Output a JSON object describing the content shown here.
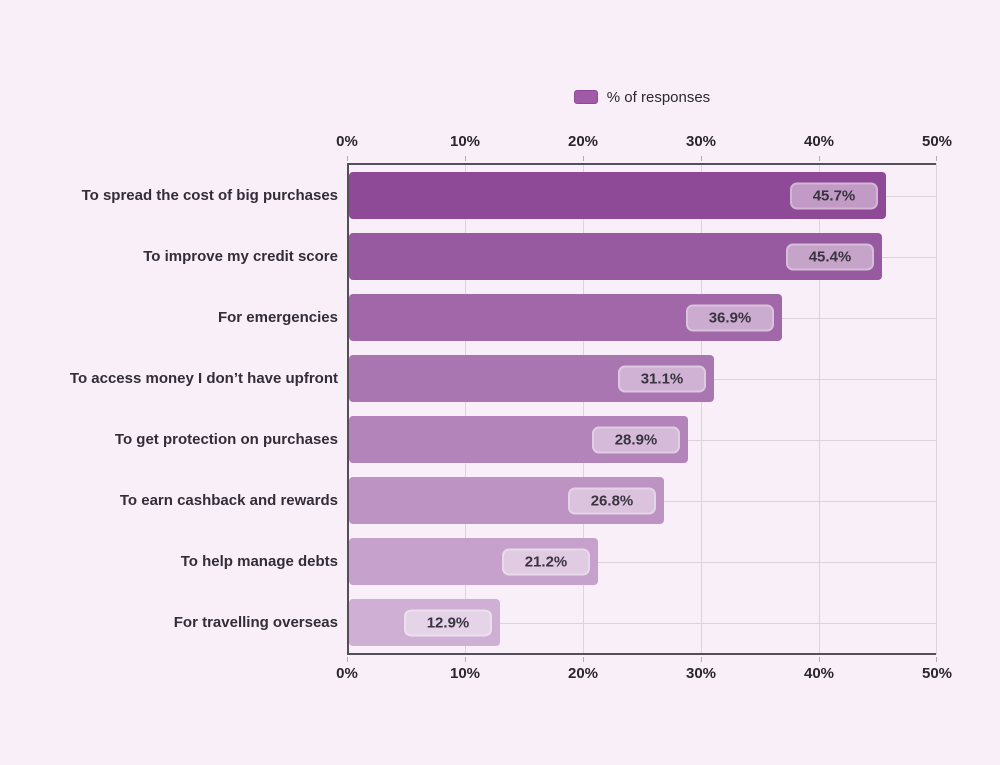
{
  "chart_data": {
    "type": "bar",
    "orientation": "horizontal",
    "title": "",
    "legend_label": "% of responses",
    "legend_position": "top-center",
    "categories": [
      "To spread the cost of big purchases",
      "To improve my credit score",
      "For emergencies",
      "To access money I don’t have upfront",
      "To get protection on purchases",
      "To earn cashback and rewards",
      "To help manage debts",
      "For travelling overseas"
    ],
    "values": [
      45.7,
      45.4,
      36.9,
      31.1,
      28.9,
      26.8,
      21.2,
      12.9
    ],
    "value_labels": [
      "45.7%",
      "45.4%",
      "36.9%",
      "31.1%",
      "28.9%",
      "26.8%",
      "21.2%",
      "12.9%"
    ],
    "x_ticks": [
      "0%",
      "10%",
      "20%",
      "30%",
      "40%",
      "50%"
    ],
    "xlim": [
      0,
      50
    ],
    "grid": true,
    "bar_colors": [
      "#8e4a96",
      "#97599f",
      "#a167a8",
      "#aa76b1",
      "#b384ba",
      "#bd93c3",
      "#c6a1cb",
      "#cfb0d4"
    ],
    "swatch_color": "#a05aa6"
  },
  "style_colors": {
    "background": "#f9eff8",
    "axis_line": "#544e58",
    "gridline": "#ddd2dd",
    "text": "#322d39"
  }
}
